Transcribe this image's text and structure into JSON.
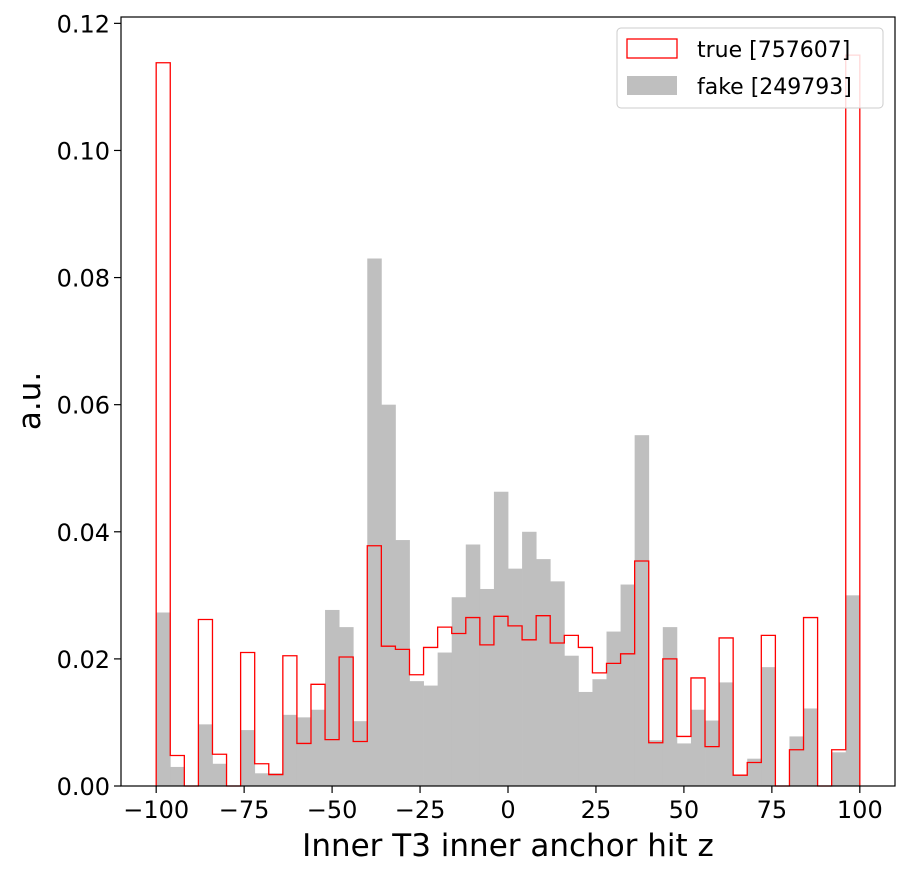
{
  "chart_data": {
    "type": "histogram",
    "xlabel": "Inner T3 inner anchor hit z",
    "ylabel": "a.u.",
    "xlim": [
      -110,
      110
    ],
    "ylim": [
      0,
      0.121
    ],
    "xticks": [
      -100,
      -75,
      -50,
      -25,
      0,
      25,
      50,
      75,
      100
    ],
    "xtick_labels": [
      "−100",
      "−75",
      "−50",
      "−25",
      "0",
      "25",
      "50",
      "75",
      "100"
    ],
    "yticks": [
      0,
      0.02,
      0.04,
      0.06,
      0.08,
      0.1,
      0.12
    ],
    "ytick_labels": [
      "0.00",
      "0.02",
      "0.04",
      "0.06",
      "0.08",
      "0.10",
      "0.12"
    ],
    "grid": false,
    "legend_position": "top-right",
    "bin_edges_range": [
      -100,
      100
    ],
    "bin_count": 50,
    "series": [
      {
        "name": "true [757607]",
        "style": "step",
        "color": "#ff0000",
        "values": [
          0.1138,
          0.0048,
          0.0,
          0.0262,
          0.005,
          0.0,
          0.021,
          0.0035,
          0.0018,
          0.0205,
          0.0067,
          0.016,
          0.0073,
          0.0203,
          0.007,
          0.0378,
          0.022,
          0.0215,
          0.0175,
          0.0218,
          0.025,
          0.024,
          0.0265,
          0.0222,
          0.0267,
          0.0252,
          0.023,
          0.0268,
          0.0225,
          0.0237,
          0.0218,
          0.0178,
          0.0193,
          0.0208,
          0.0354,
          0.0068,
          0.02,
          0.0078,
          0.017,
          0.0062,
          0.0233,
          0.0017,
          0.0037,
          0.0237,
          0.0,
          0.0057,
          0.0265,
          0.0,
          0.0057,
          0.115
        ]
      },
      {
        "name": "fake [249793]",
        "style": "filled",
        "color": "#bfbfbf",
        "values": [
          0.0273,
          0.003,
          0.0,
          0.0097,
          0.0035,
          0.0,
          0.0088,
          0.002,
          0.002,
          0.0112,
          0.0108,
          0.012,
          0.0277,
          0.025,
          0.0102,
          0.083,
          0.06,
          0.0387,
          0.0165,
          0.0158,
          0.021,
          0.0297,
          0.038,
          0.031,
          0.0463,
          0.0342,
          0.04,
          0.0357,
          0.0322,
          0.0205,
          0.0148,
          0.0168,
          0.0243,
          0.0317,
          0.0552,
          0.0072,
          0.025,
          0.0067,
          0.012,
          0.0103,
          0.0163,
          0.0017,
          0.0043,
          0.0187,
          0.0,
          0.0078,
          0.0122,
          0.0,
          0.0053,
          0.03
        ]
      }
    ]
  }
}
